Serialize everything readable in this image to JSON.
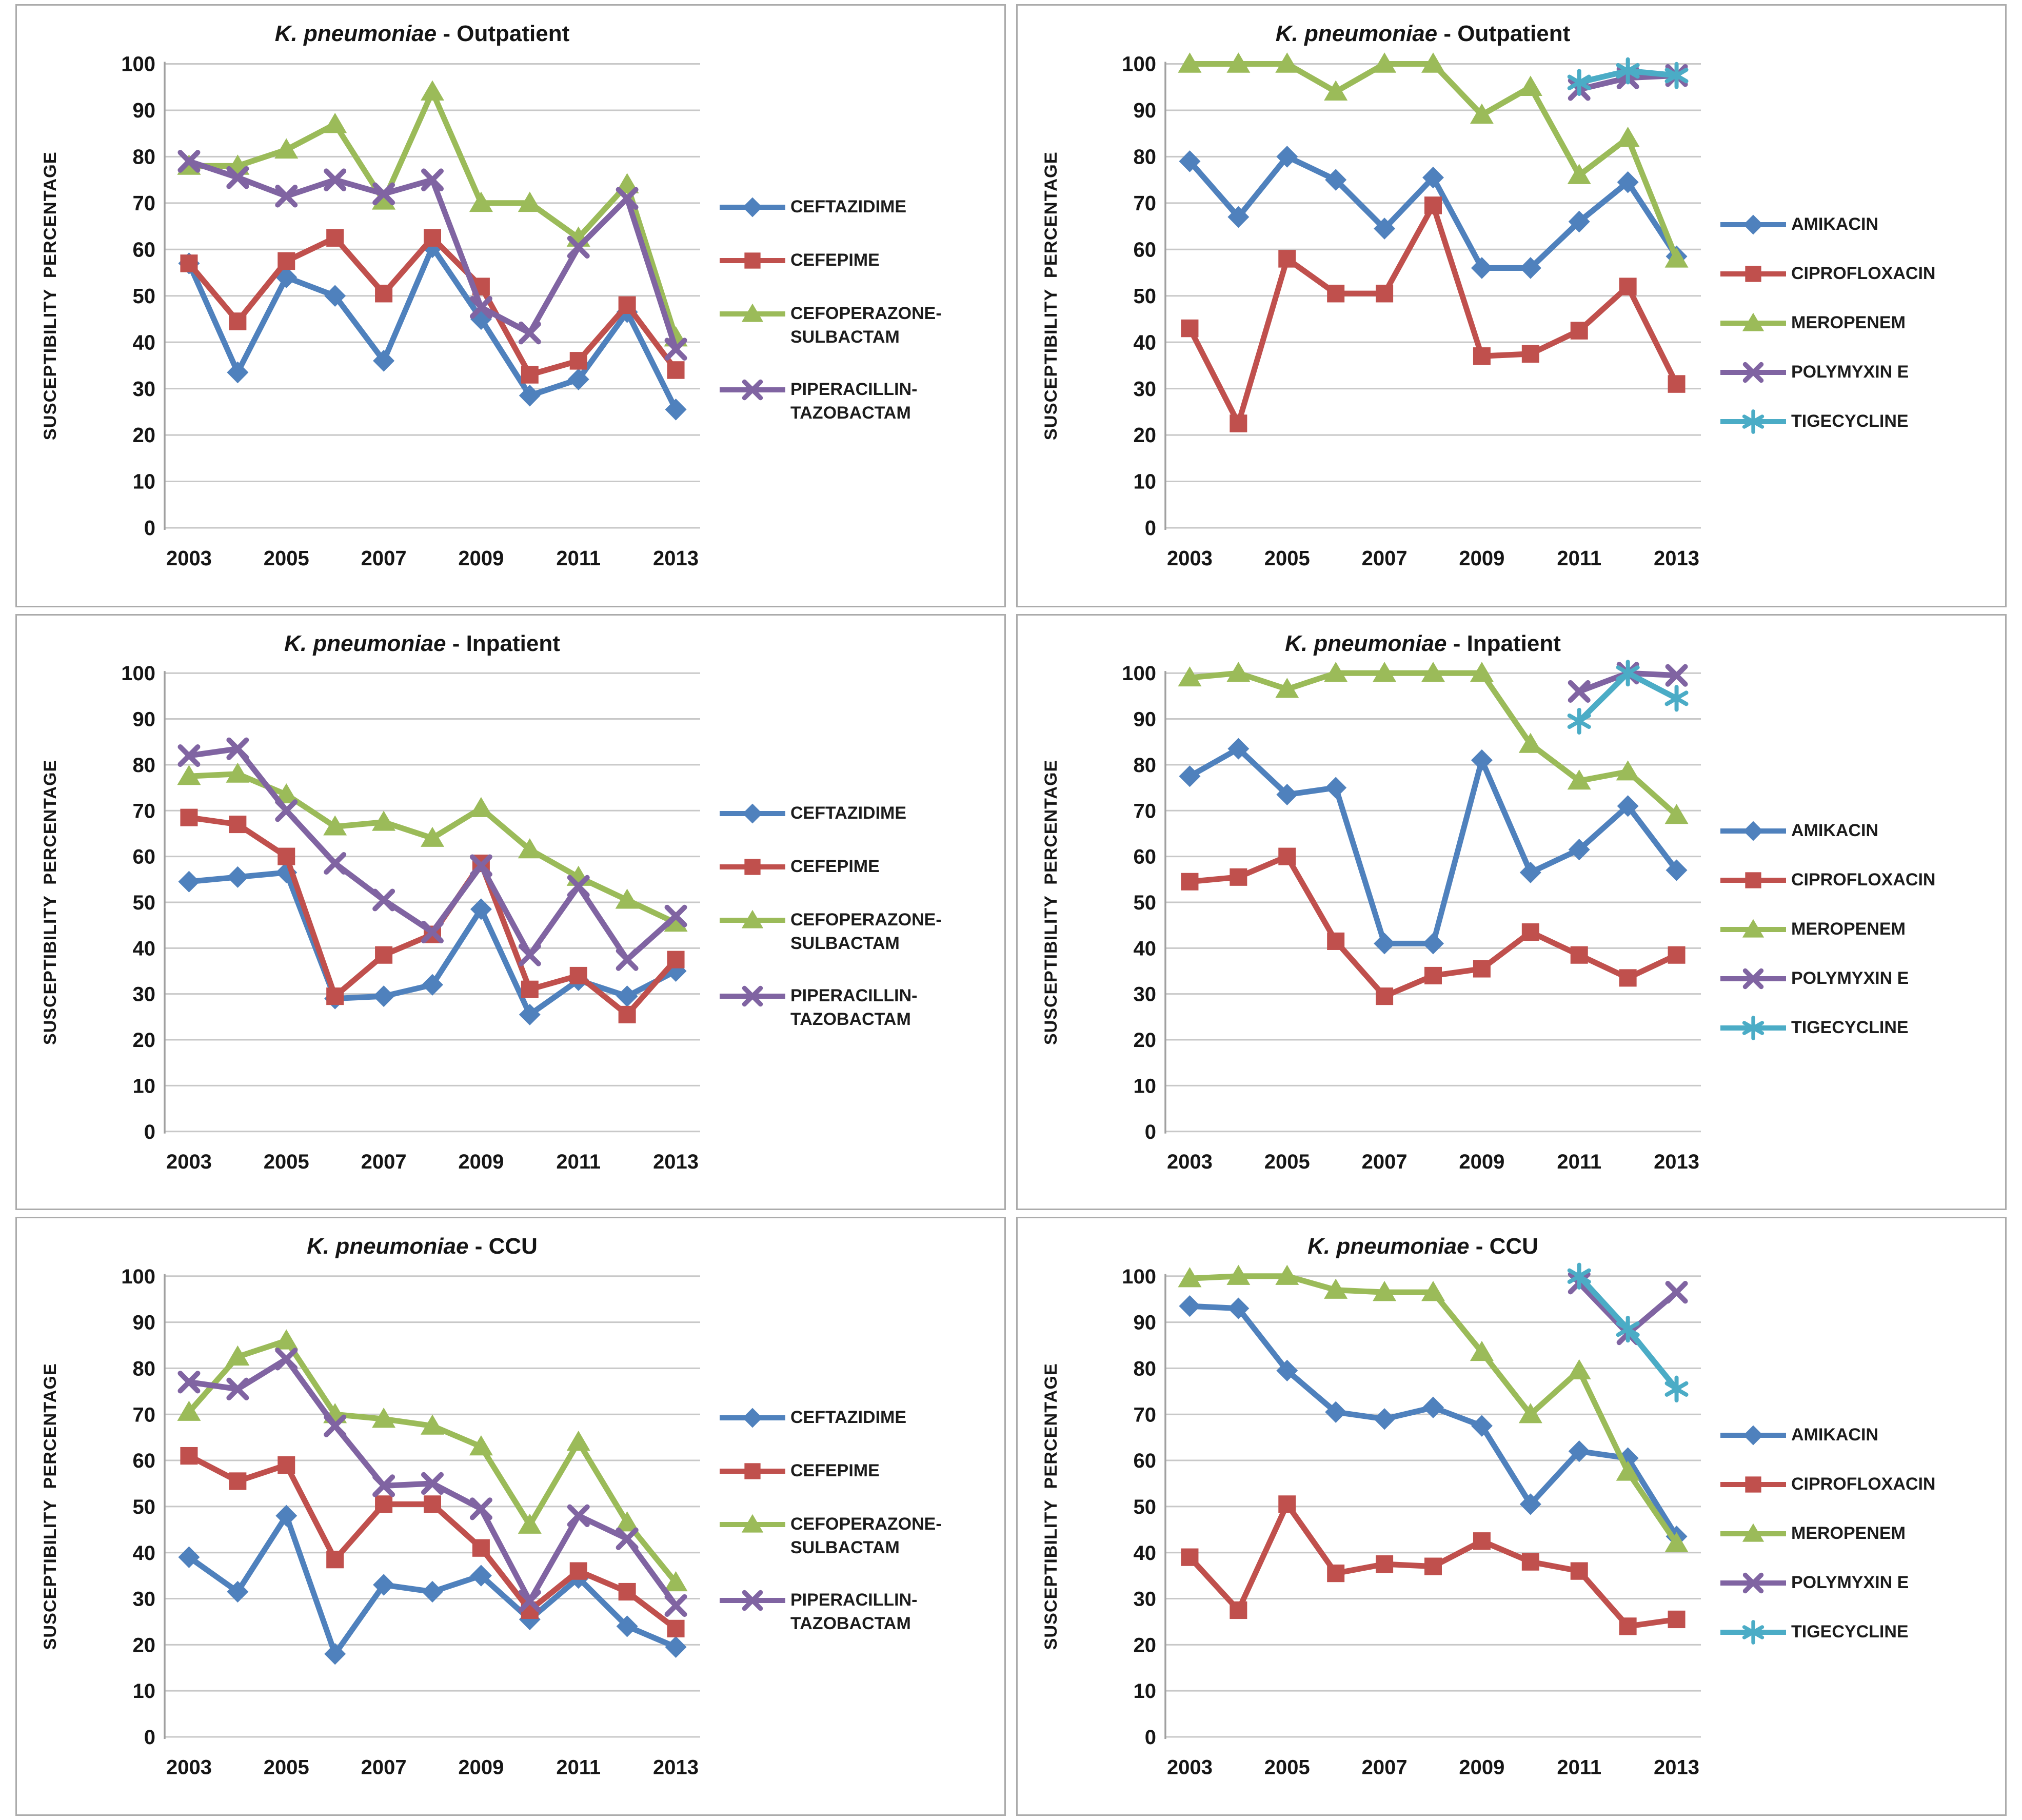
{
  "figure": {
    "y_axis_label": "SUSCEPTIBILITY  PERCENTAGE",
    "x_tick_labels": [
      "2003",
      "2005",
      "2007",
      "2009",
      "2011",
      "2013"
    ],
    "y_tick_labels": [
      "0",
      "10",
      "20",
      "30",
      "40",
      "50",
      "60",
      "70",
      "80",
      "90",
      "100"
    ],
    "grid_color": "#c8c8c8",
    "axis_color": "#a0a0a0",
    "text_color": "#161616",
    "panel_border_color": "#ababab",
    "series_colors": {
      "blue": "#4F81BD",
      "red": "#C0504D",
      "green": "#9BBB59",
      "purple": "#8064A2",
      "cyan": "#4BACC6"
    }
  },
  "chart_data": [
    {
      "type": "line",
      "title_species": "K. pneumoniae",
      "title_rest": "- Outpatient",
      "ylabel": "SUSCEPTIBILITY  PERCENTAGE",
      "x": [
        2003,
        2004,
        2005,
        2006,
        2007,
        2008,
        2009,
        2010,
        2011,
        2012,
        2013
      ],
      "ylim": [
        0,
        100
      ],
      "grid": true,
      "legend_position": "right",
      "series": [
        {
          "name": "CEFTAZIDIME",
          "legend_lines": [
            "CEFTAZIDIME"
          ],
          "color": "#4F81BD",
          "marker": "diamond",
          "values": [
            57,
            33.5,
            54,
            50,
            36,
            60.5,
            45,
            28.5,
            32,
            46.5,
            25.5
          ]
        },
        {
          "name": "CEFEPIME",
          "legend_lines": [
            "CEFEPIME"
          ],
          "color": "#C0504D",
          "marker": "square",
          "values": [
            57,
            44.5,
            57.5,
            62.5,
            50.5,
            62.5,
            52,
            33,
            36,
            48,
            34
          ]
        },
        {
          "name": "CEFOPERAZONE-SULBACTAM",
          "legend_lines": [
            "CEFOPERAZONE-",
            "SULBACTAM"
          ],
          "color": "#9BBB59",
          "marker": "triangle",
          "values": [
            78,
            78,
            81.5,
            87,
            70.5,
            94,
            70,
            70,
            62.5,
            74,
            41
          ]
        },
        {
          "name": "PIPERACILLIN-TAZOBACTAM",
          "legend_lines": [
            "PIPERACILLIN-",
            "TAZOBACTAM"
          ],
          "color": "#8064A2",
          "marker": "x",
          "values": [
            79,
            75.5,
            71.5,
            75,
            72,
            75,
            47.5,
            42,
            60.5,
            71,
            38.5
          ]
        }
      ]
    },
    {
      "type": "line",
      "title_species": "K. pneumoniae",
      "title_rest": "- Outpatient",
      "ylabel": "SUSCEPTIBILITY  PERCENTAGE",
      "x": [
        2003,
        2004,
        2005,
        2006,
        2007,
        2008,
        2009,
        2010,
        2011,
        2012,
        2013
      ],
      "ylim": [
        0,
        100
      ],
      "grid": true,
      "legend_position": "right",
      "series": [
        {
          "name": "AMIKACIN",
          "legend_lines": [
            "AMIKACIN"
          ],
          "color": "#4F81BD",
          "marker": "diamond",
          "values": [
            79,
            67,
            80,
            75,
            64.5,
            75.5,
            56,
            56,
            66,
            74.5,
            58.5
          ]
        },
        {
          "name": "CIPROFLOXACIN",
          "legend_lines": [
            "CIPROFLOXACIN"
          ],
          "color": "#C0504D",
          "marker": "square",
          "values": [
            43,
            22.5,
            58,
            50.5,
            50.5,
            69.5,
            37,
            37.5,
            42.5,
            52,
            31
          ]
        },
        {
          "name": "MEROPENEM",
          "legend_lines": [
            "MEROPENEM"
          ],
          "color": "#9BBB59",
          "marker": "triangle",
          "values": [
            100,
            100,
            100,
            94,
            100,
            100,
            89,
            95,
            76,
            84,
            58
          ]
        },
        {
          "name": "POLYMYXIN E",
          "legend_lines": [
            "POLYMYXIN E"
          ],
          "color": "#8064A2",
          "marker": "x",
          "values": [
            null,
            null,
            null,
            null,
            null,
            null,
            null,
            null,
            94.5,
            97,
            97.5
          ]
        },
        {
          "name": "TIGECYCLINE",
          "legend_lines": [
            "TIGECYCLINE"
          ],
          "color": "#4BACC6",
          "marker": "star",
          "values": [
            null,
            null,
            null,
            null,
            null,
            null,
            null,
            null,
            96,
            98.5,
            97.5
          ]
        }
      ]
    },
    {
      "type": "line",
      "title_species": "K. pneumoniae",
      "title_rest": "- Inpatient",
      "ylabel": "SUSCEPTIBILITY  PERCENTAGE",
      "x": [
        2003,
        2004,
        2005,
        2006,
        2007,
        2008,
        2009,
        2010,
        2011,
        2012,
        2013
      ],
      "ylim": [
        0,
        100
      ],
      "grid": true,
      "legend_position": "right",
      "series": [
        {
          "name": "CEFTAZIDIME",
          "legend_lines": [
            "CEFTAZIDIME"
          ],
          "color": "#4F81BD",
          "marker": "diamond",
          "values": [
            54.5,
            55.5,
            56.5,
            29,
            29.5,
            32,
            48.5,
            25.5,
            33,
            29.5,
            35
          ]
        },
        {
          "name": "CEFEPIME",
          "legend_lines": [
            "CEFEPIME"
          ],
          "color": "#C0504D",
          "marker": "square",
          "values": [
            68.5,
            67,
            60,
            29.5,
            38.5,
            43,
            58.5,
            31,
            34,
            25.5,
            37.5
          ]
        },
        {
          "name": "CEFOPERAZONE-SULBACTAM",
          "legend_lines": [
            "CEFOPERAZONE-",
            "SULBACTAM"
          ],
          "color": "#9BBB59",
          "marker": "triangle",
          "values": [
            77.5,
            78,
            73.5,
            66.5,
            67.5,
            64,
            70.5,
            61.5,
            55.5,
            50.5,
            45.5
          ]
        },
        {
          "name": "PIPERACILLIN-TAZOBACTAM",
          "legend_lines": [
            "PIPERACILLIN-",
            "TAZOBACTAM"
          ],
          "color": "#8064A2",
          "marker": "x",
          "values": [
            82,
            83.5,
            70,
            58.5,
            50.5,
            43.5,
            58,
            38.5,
            53.5,
            37.5,
            47
          ]
        }
      ]
    },
    {
      "type": "line",
      "title_species": "K. pneumoniae",
      "title_rest": "- Inpatient",
      "ylabel": "SUSCEPTIBILITY  PERCENTAGE",
      "x": [
        2003,
        2004,
        2005,
        2006,
        2007,
        2008,
        2009,
        2010,
        2011,
        2012,
        2013
      ],
      "ylim": [
        0,
        100
      ],
      "grid": true,
      "legend_position": "right",
      "series": [
        {
          "name": "AMIKACIN",
          "legend_lines": [
            "AMIKACIN"
          ],
          "color": "#4F81BD",
          "marker": "diamond",
          "values": [
            77.5,
            83.5,
            73.5,
            75,
            41,
            41,
            81,
            56.5,
            61.5,
            71,
            57
          ]
        },
        {
          "name": "CIPROFLOXACIN",
          "legend_lines": [
            "CIPROFLOXACIN"
          ],
          "color": "#C0504D",
          "marker": "square",
          "values": [
            54.5,
            55.5,
            60,
            41.5,
            29.5,
            34,
            35.5,
            43.5,
            38.5,
            33.5,
            38.5
          ]
        },
        {
          "name": "MEROPENEM",
          "legend_lines": [
            "MEROPENEM"
          ],
          "color": "#9BBB59",
          "marker": "triangle",
          "values": [
            99,
            100,
            96.5,
            100,
            100,
            100,
            100,
            84.5,
            76.5,
            78.5,
            69
          ]
        },
        {
          "name": "POLYMYXIN E",
          "legend_lines": [
            "POLYMYXIN E"
          ],
          "color": "#8064A2",
          "marker": "x",
          "values": [
            null,
            null,
            null,
            null,
            null,
            null,
            null,
            null,
            96,
            100,
            99.5
          ]
        },
        {
          "name": "TIGECYCLINE",
          "legend_lines": [
            "TIGECYCLINE"
          ],
          "color": "#4BACC6",
          "marker": "star",
          "values": [
            null,
            null,
            null,
            null,
            null,
            null,
            null,
            null,
            89.5,
            100,
            94.5
          ]
        }
      ]
    },
    {
      "type": "line",
      "title_species": "K. pneumoniae",
      "title_rest": "- CCU",
      "ylabel": "SUSCEPTIBILITY  PERCENTAGE",
      "x": [
        2003,
        2004,
        2005,
        2006,
        2007,
        2008,
        2009,
        2010,
        2011,
        2012,
        2013
      ],
      "ylim": [
        0,
        100
      ],
      "grid": true,
      "legend_position": "right",
      "series": [
        {
          "name": "CEFTAZIDIME",
          "legend_lines": [
            "CEFTAZIDIME"
          ],
          "color": "#4F81BD",
          "marker": "diamond",
          "values": [
            39,
            31.5,
            48,
            18,
            33,
            31.5,
            35,
            25.5,
            34.5,
            24,
            19.5
          ]
        },
        {
          "name": "CEFEPIME",
          "legend_lines": [
            "CEFEPIME"
          ],
          "color": "#C0504D",
          "marker": "square",
          "values": [
            61,
            55.5,
            59,
            38.5,
            50.5,
            50.5,
            41,
            27.5,
            36,
            31.5,
            23.5
          ]
        },
        {
          "name": "CEFOPERAZONE-SULBACTAM",
          "legend_lines": [
            "CEFOPERAZONE-",
            "SULBACTAM"
          ],
          "color": "#9BBB59",
          "marker": "triangle",
          "values": [
            70.5,
            82.5,
            86,
            70,
            69,
            67.5,
            63,
            46,
            64,
            46.5,
            33.5
          ]
        },
        {
          "name": "PIPERACILLIN-TAZOBACTAM",
          "legend_lines": [
            "PIPERACILLIN-",
            "TAZOBACTAM"
          ],
          "color": "#8064A2",
          "marker": "x",
          "values": [
            77,
            75.5,
            82,
            67.5,
            54.5,
            55,
            49.5,
            29.5,
            48,
            43,
            28.5
          ]
        }
      ]
    },
    {
      "type": "line",
      "title_species": "K. pneumoniae",
      "title_rest": "- CCU",
      "ylabel": "SUSCEPTIBILITY  PERCENTAGE",
      "x": [
        2003,
        2004,
        2005,
        2006,
        2007,
        2008,
        2009,
        2010,
        2011,
        2012,
        2013
      ],
      "ylim": [
        0,
        100
      ],
      "grid": true,
      "legend_position": "right",
      "series": [
        {
          "name": "AMIKACIN",
          "legend_lines": [
            "AMIKACIN"
          ],
          "color": "#4F81BD",
          "marker": "diamond",
          "values": [
            93.5,
            93,
            79.5,
            70.5,
            69,
            71.5,
            67.5,
            50.5,
            62,
            60.5,
            43.5
          ]
        },
        {
          "name": "CIPROFLOXACIN",
          "legend_lines": [
            "CIPROFLOXACIN"
          ],
          "color": "#C0504D",
          "marker": "square",
          "values": [
            39,
            27.5,
            50.5,
            35.5,
            37.5,
            37,
            42.5,
            38,
            36,
            24,
            25.5
          ]
        },
        {
          "name": "MEROPENEM",
          "legend_lines": [
            "MEROPENEM"
          ],
          "color": "#9BBB59",
          "marker": "triangle",
          "values": [
            99.5,
            100,
            100,
            97,
            96.5,
            96.5,
            83.5,
            70,
            79.5,
            57.5,
            42
          ]
        },
        {
          "name": "POLYMYXIN E",
          "legend_lines": [
            "POLYMYXIN E"
          ],
          "color": "#8064A2",
          "marker": "x",
          "values": [
            null,
            null,
            null,
            null,
            null,
            null,
            null,
            null,
            98.5,
            87.5,
            96.5
          ]
        },
        {
          "name": "TIGECYCLINE",
          "legend_lines": [
            "TIGECYCLINE"
          ],
          "color": "#4BACC6",
          "marker": "star",
          "values": [
            null,
            null,
            null,
            null,
            null,
            null,
            null,
            null,
            100,
            88.5,
            75.5
          ]
        }
      ]
    }
  ]
}
